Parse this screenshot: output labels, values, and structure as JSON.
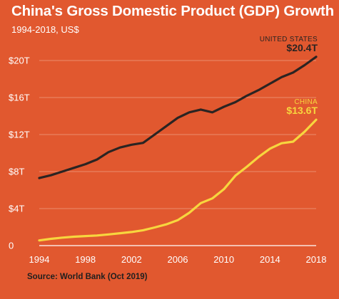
{
  "title": "China's Gross Domestic Product (GDP) Growth",
  "subtitle": "1994-2018, US$",
  "source": "Source: World Bank (Oct 2019)",
  "colors": {
    "background": "#e1582f",
    "grid": "#eb8c6c",
    "united_states": "#2b2422",
    "china": "#f7d63e",
    "text": "#ffffff"
  },
  "chart_data": {
    "type": "line",
    "title": "China's Gross Domestic Product (GDP) Growth",
    "subtitle": "1994-2018, US$",
    "xlabel": "",
    "ylabel": "",
    "xlim": [
      1994,
      2018
    ],
    "ylim": [
      0,
      21
    ],
    "x_ticks": [
      1994,
      1998,
      2002,
      2006,
      2010,
      2014,
      2018
    ],
    "x_tick_labels": [
      "1994",
      "1998",
      "2002",
      "2006",
      "2010",
      "2014",
      "2018"
    ],
    "y_ticks": [
      0,
      4,
      8,
      12,
      16,
      20
    ],
    "y_tick_labels": [
      "0",
      "$4T",
      "$8T",
      "$12T",
      "$16T",
      "$20T"
    ],
    "grid": "horizontal",
    "x": [
      1994,
      1995,
      1996,
      1997,
      1998,
      1999,
      2000,
      2001,
      2002,
      2003,
      2004,
      2005,
      2006,
      2007,
      2008,
      2009,
      2010,
      2011,
      2012,
      2013,
      2014,
      2015,
      2016,
      2017,
      2018
    ],
    "series": [
      {
        "name": "UNITED STATES",
        "end_label": "$20.4T",
        "color": "#2b2422",
        "values": [
          7.3,
          7.6,
          8.0,
          8.4,
          8.8,
          9.3,
          10.1,
          10.6,
          10.9,
          11.1,
          12.0,
          12.9,
          13.8,
          14.4,
          14.7,
          14.4,
          15.0,
          15.5,
          16.2,
          16.8,
          17.5,
          18.2,
          18.7,
          19.5,
          20.4
        ]
      },
      {
        "name": "CHINA",
        "end_label": "$13.6T",
        "color": "#f7d63e",
        "values": [
          0.56,
          0.73,
          0.86,
          0.96,
          1.03,
          1.09,
          1.21,
          1.34,
          1.47,
          1.66,
          1.96,
          2.29,
          2.75,
          3.55,
          4.59,
          5.1,
          6.09,
          7.55,
          8.53,
          9.57,
          10.48,
          11.06,
          11.23,
          12.31,
          13.6
        ]
      }
    ]
  }
}
